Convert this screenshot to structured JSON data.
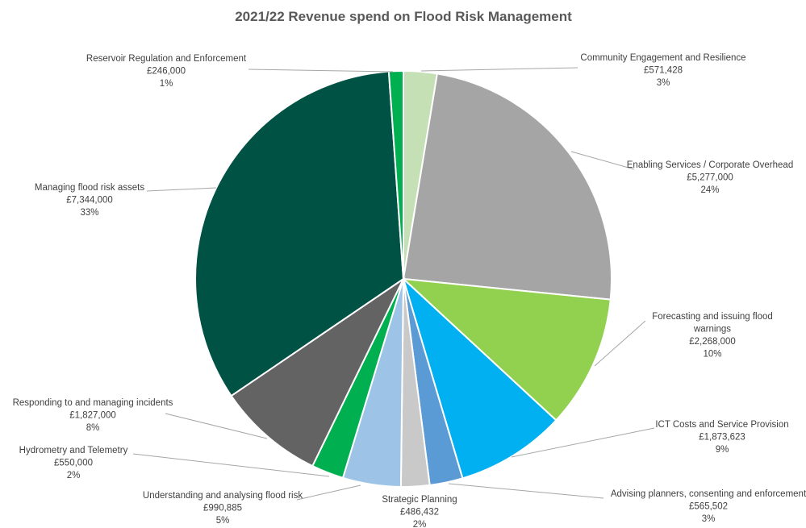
{
  "chart_data": {
    "type": "pie",
    "title": "2021/22 Revenue spend on Flood Risk Management",
    "start_angle_deg": 0,
    "direction": "clockwise",
    "legend": "none",
    "slices": [
      {
        "label": "Community Engagement and Resilience",
        "value_text": "£571,428",
        "value": 571428,
        "percent_text": "3%",
        "color": "#c5e0b4"
      },
      {
        "label": "Enabling Services / Corporate Overhead",
        "value_text": "£5,277,000",
        "value": 5277000,
        "percent_text": "24%",
        "color": "#a5a5a5"
      },
      {
        "label": "Forecasting and issuing flood warnings",
        "value_text": "£2,268,000",
        "value": 2268000,
        "percent_text": "10%",
        "color": "#92d050"
      },
      {
        "label": "ICT Costs and Service Provision",
        "value_text": "£1,873,623",
        "value": 1873623,
        "percent_text": "9%",
        "color": "#00b0f0"
      },
      {
        "label": "Advising planners, consenting and enforcement",
        "value_text": "£565,502",
        "value": 565502,
        "percent_text": "3%",
        "color": "#5b9bd5"
      },
      {
        "label": "Strategic Planning",
        "value_text": "£486,432",
        "value": 486432,
        "percent_text": "2%",
        "color": "#c9c9c9"
      },
      {
        "label": "Understanding and analysing flood risk",
        "value_text": "£990,885",
        "value": 990885,
        "percent_text": "5%",
        "color": "#9dc3e6"
      },
      {
        "label": "Hydrometry and Telemetry",
        "value_text": "£550,000",
        "value": 550000,
        "percent_text": "2%",
        "color": "#00b050"
      },
      {
        "label": "Responding to and managing incidents",
        "value_text": "£1,827,000",
        "value": 1827000,
        "percent_text": "8%",
        "color": "#636363"
      },
      {
        "label": "Managing flood risk assets",
        "value_text": "£7,344,000",
        "value": 7344000,
        "percent_text": "33%",
        "color": "#005245"
      },
      {
        "label": "Reservoir Regulation and Enforcement",
        "value_text": "£246,000",
        "value": 246000,
        "percent_text": "1%",
        "color": "#00b050"
      }
    ]
  }
}
